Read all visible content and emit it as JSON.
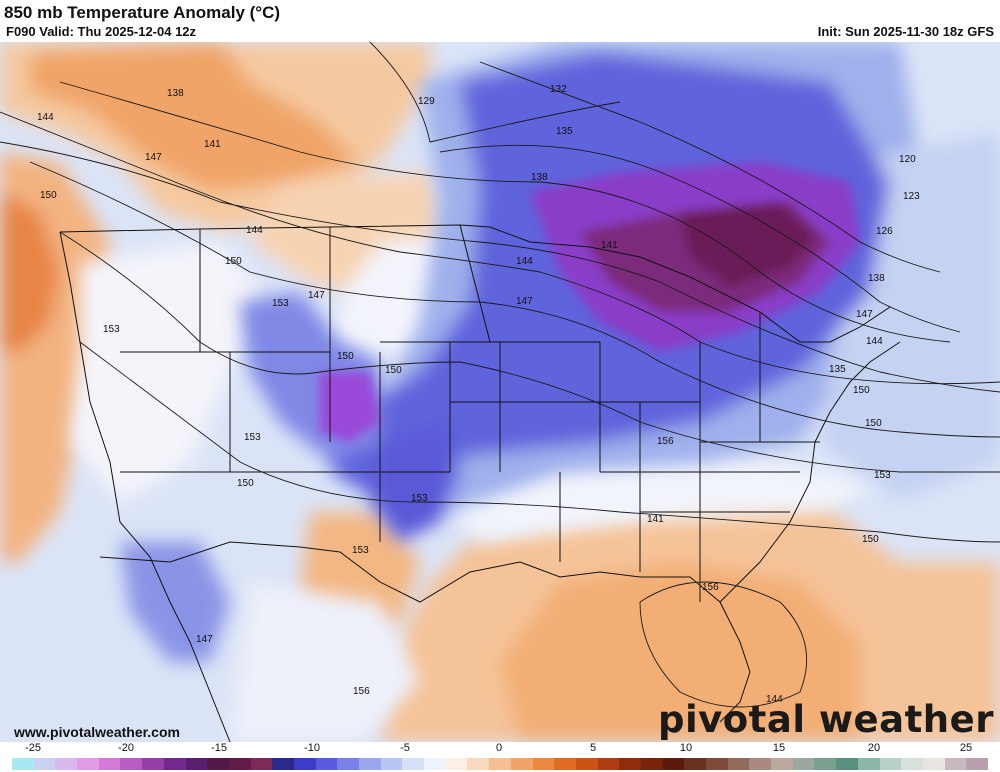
{
  "header": {
    "title": "850 mb Temperature Anomaly (°C)",
    "valid": "F090 Valid: Thu 2025-12-04 12z",
    "init": "Init: Sun 2025-11-30 18z GFS"
  },
  "footer": {
    "url": "www.pivotalweather.com",
    "brand": "pivotal weather"
  },
  "contour_labels": [
    "129",
    "132",
    "135",
    "138",
    "141",
    "144",
    "147",
    "150",
    "153",
    "156",
    "120",
    "123",
    "126",
    "138",
    "144",
    "147",
    "150",
    "153",
    "150",
    "153",
    "150",
    "153",
    "141",
    "144",
    "147",
    "150",
    "153",
    "150",
    "150",
    "147",
    "144",
    "135",
    "138",
    "141",
    "144",
    "147",
    "150",
    "153",
    "156",
    "156"
  ],
  "colorbar": {
    "ticks": [
      "-25",
      "-20",
      "-15",
      "-10",
      "-5",
      "0",
      "5",
      "10",
      "15",
      "20",
      "25"
    ],
    "colors": [
      "#a8e8f0",
      "#c9d2f2",
      "#d9b8ee",
      "#e49be6",
      "#d47ad8",
      "#b95cc4",
      "#943fa8",
      "#72288c",
      "#5a1e6e",
      "#521848",
      "#641a48",
      "#7d2a5a",
      "#2a2a8c",
      "#3c3cc8",
      "#5a5ae0",
      "#7a82e8",
      "#9aa6ee",
      "#b8c6f2",
      "#d6e0f6",
      "#eef2fa",
      "#fbf0e6",
      "#f8d9bd",
      "#f5bf92",
      "#f2a468",
      "#ec8840",
      "#e06c24",
      "#cc5216",
      "#b03c10",
      "#8e2c0c",
      "#76240c",
      "#5c1a0c",
      "#6a3020",
      "#7e4a3a",
      "#946a5c",
      "#aa8a80",
      "#bda8a0",
      "#9aa8a0",
      "#7aa090",
      "#5a9080",
      "#8cb8a8",
      "#b8d0c8",
      "#d8e0dc",
      "#e8e4e0",
      "#c8b8c0",
      "#b8a0b0"
    ]
  }
}
